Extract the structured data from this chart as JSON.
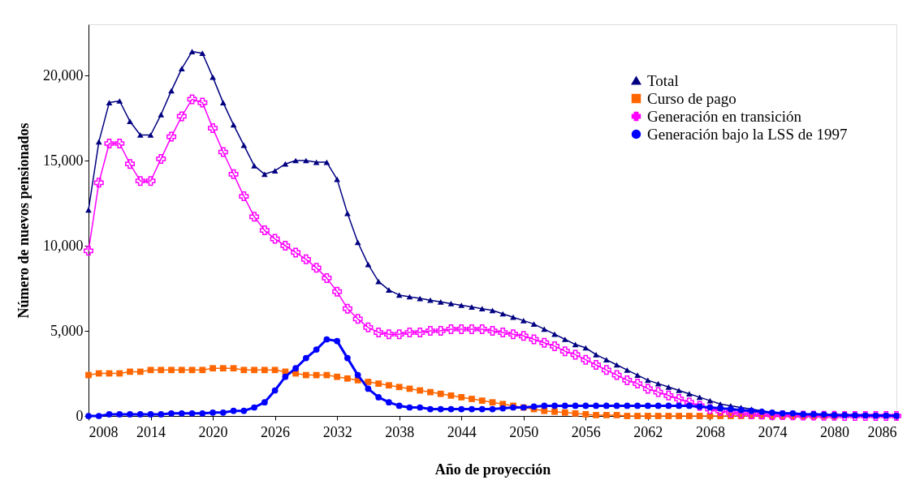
{
  "chart_data": {
    "type": "line",
    "xlabel": "Año de proyección",
    "ylabel": "Número de nuevos pensionados",
    "x": [
      2008,
      2009,
      2010,
      2011,
      2012,
      2013,
      2014,
      2015,
      2016,
      2017,
      2018,
      2019,
      2020,
      2021,
      2022,
      2023,
      2024,
      2025,
      2026,
      2027,
      2028,
      2029,
      2030,
      2031,
      2032,
      2033,
      2034,
      2035,
      2036,
      2037,
      2038,
      2039,
      2040,
      2041,
      2042,
      2043,
      2044,
      2045,
      2046,
      2047,
      2048,
      2049,
      2050,
      2051,
      2052,
      2053,
      2054,
      2055,
      2056,
      2057,
      2058,
      2059,
      2060,
      2061,
      2062,
      2063,
      2064,
      2065,
      2066,
      2067,
      2068,
      2069,
      2070,
      2071,
      2072,
      2073,
      2074,
      2075,
      2076,
      2077,
      2078,
      2079,
      2080,
      2081,
      2082,
      2083,
      2084,
      2085,
      2086
    ],
    "series": [
      {
        "name": "Total",
        "color": "#000080",
        "marker": "triangle",
        "values": [
          12100,
          16100,
          18400,
          18500,
          17300,
          16500,
          16500,
          17700,
          19100,
          20400,
          21400,
          21300,
          19900,
          18400,
          17100,
          15900,
          14700,
          14200,
          14400,
          14800,
          15000,
          15000,
          14900,
          14900,
          13900,
          11900,
          10200,
          8900,
          7900,
          7400,
          7100,
          7000,
          6900,
          6800,
          6700,
          6600,
          6500,
          6400,
          6300,
          6200,
          6000,
          5800,
          5600,
          5400,
          5100,
          4800,
          4500,
          4200,
          4000,
          3600,
          3300,
          3000,
          2700,
          2400,
          2100,
          1900,
          1700,
          1500,
          1300,
          1100,
          900,
          700,
          600,
          500,
          400,
          300,
          200,
          null,
          null,
          null,
          null,
          null,
          null,
          null,
          null,
          null,
          null,
          null,
          null
        ]
      },
      {
        "name": "Curso de pago",
        "color": "#ff6600",
        "marker": "square",
        "values": [
          2400,
          2500,
          2500,
          2500,
          2600,
          2600,
          2700,
          2700,
          2700,
          2700,
          2700,
          2700,
          2800,
          2800,
          2800,
          2700,
          2700,
          2700,
          2700,
          2600,
          2500,
          2400,
          2400,
          2400,
          2300,
          2200,
          2100,
          2000,
          1900,
          1800,
          1700,
          1600,
          1500,
          1400,
          1300,
          1200,
          1100,
          1000,
          900,
          800,
          700,
          600,
          500,
          400,
          300,
          250,
          200,
          150,
          100,
          50,
          50,
          50,
          0,
          0,
          0,
          0,
          0,
          0,
          0,
          0,
          0,
          0,
          0,
          0,
          0,
          0,
          0,
          0,
          0,
          0,
          0,
          0,
          0,
          null,
          null,
          null,
          null,
          null,
          null
        ]
      },
      {
        "name": "Generación en transición",
        "color": "#ff00ff",
        "marker": "cross",
        "values": [
          9700,
          13700,
          16000,
          16000,
          14800,
          13800,
          13800,
          15100,
          16400,
          17600,
          18600,
          18400,
          16900,
          15500,
          14200,
          12900,
          11700,
          10900,
          10400,
          10000,
          9600,
          9200,
          8700,
          8100,
          7300,
          6300,
          5700,
          5200,
          4900,
          4800,
          4800,
          4900,
          4900,
          5000,
          5000,
          5100,
          5100,
          5100,
          5100,
          5000,
          4900,
          4800,
          4700,
          4500,
          4300,
          4100,
          3800,
          3600,
          3300,
          3000,
          2700,
          2400,
          2100,
          1900,
          1600,
          1400,
          1200,
          1000,
          800,
          600,
          400,
          300,
          200,
          150,
          100,
          80,
          50,
          50,
          30,
          20,
          20,
          10,
          10,
          0,
          0,
          0,
          0,
          0,
          0
        ]
      },
      {
        "name": "Generación bajo la LSS de 1997",
        "color": "#0000ff",
        "marker": "circle",
        "values": [
          0,
          0,
          100,
          100,
          100,
          100,
          100,
          100,
          150,
          150,
          150,
          150,
          200,
          200,
          300,
          300,
          500,
          800,
          1500,
          2300,
          2800,
          3400,
          3900,
          4500,
          4400,
          3400,
          2400,
          1600,
          1100,
          800,
          600,
          500,
          500,
          400,
          400,
          400,
          400,
          400,
          400,
          400,
          450,
          500,
          500,
          550,
          600,
          600,
          600,
          600,
          600,
          600,
          600,
          600,
          600,
          600,
          600,
          600,
          600,
          600,
          600,
          550,
          500,
          450,
          400,
          350,
          300,
          250,
          200,
          150,
          150,
          100,
          100,
          80,
          50,
          50,
          40,
          30,
          20,
          20,
          10
        ]
      }
    ],
    "xlim": [
      2008,
      2086
    ],
    "xticks": [
      2008,
      2014,
      2020,
      2026,
      2032,
      2038,
      2044,
      2050,
      2056,
      2062,
      2068,
      2074,
      2080,
      2086
    ],
    "ylim": [
      0,
      23000
    ],
    "yticks": [
      0,
      {
        "value": 5000,
        "label": "5,000"
      },
      {
        "value": 10000,
        "label": "10,000"
      },
      {
        "value": 15000,
        "label": "15,000"
      },
      {
        "value": 20000,
        "label": "20,000"
      }
    ],
    "legend": "top right",
    "grid": false
  }
}
